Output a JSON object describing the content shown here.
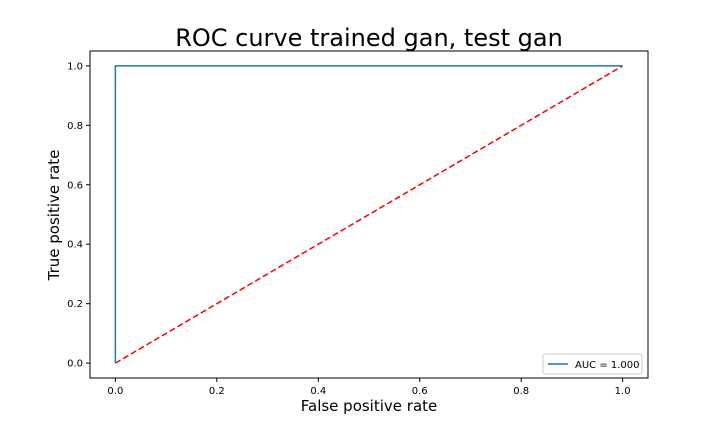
{
  "chart_data": {
    "type": "line",
    "title": "ROC curve trained gan, test gan",
    "xlabel": "False positive rate",
    "ylabel": "True positive rate",
    "xlim": [
      -0.05,
      1.05
    ],
    "ylim": [
      -0.05,
      1.05
    ],
    "xticks": [
      "0.0",
      "0.2",
      "0.4",
      "0.6",
      "0.8",
      "1.0"
    ],
    "yticks": [
      "0.0",
      "0.2",
      "0.4",
      "0.6",
      "0.8",
      "1.0"
    ],
    "grid": false,
    "legend_position": "lower-right",
    "series": [
      {
        "name": "AUC = 1.000",
        "color": "#1f77b4",
        "style": "solid",
        "x": [
          0.0,
          0.0,
          1.0
        ],
        "y": [
          0.0,
          1.0,
          1.0
        ]
      },
      {
        "color": "#ff0000",
        "style": "dashed",
        "x": [
          0.0,
          1.0
        ],
        "y": [
          0.0,
          1.0
        ]
      }
    ]
  }
}
